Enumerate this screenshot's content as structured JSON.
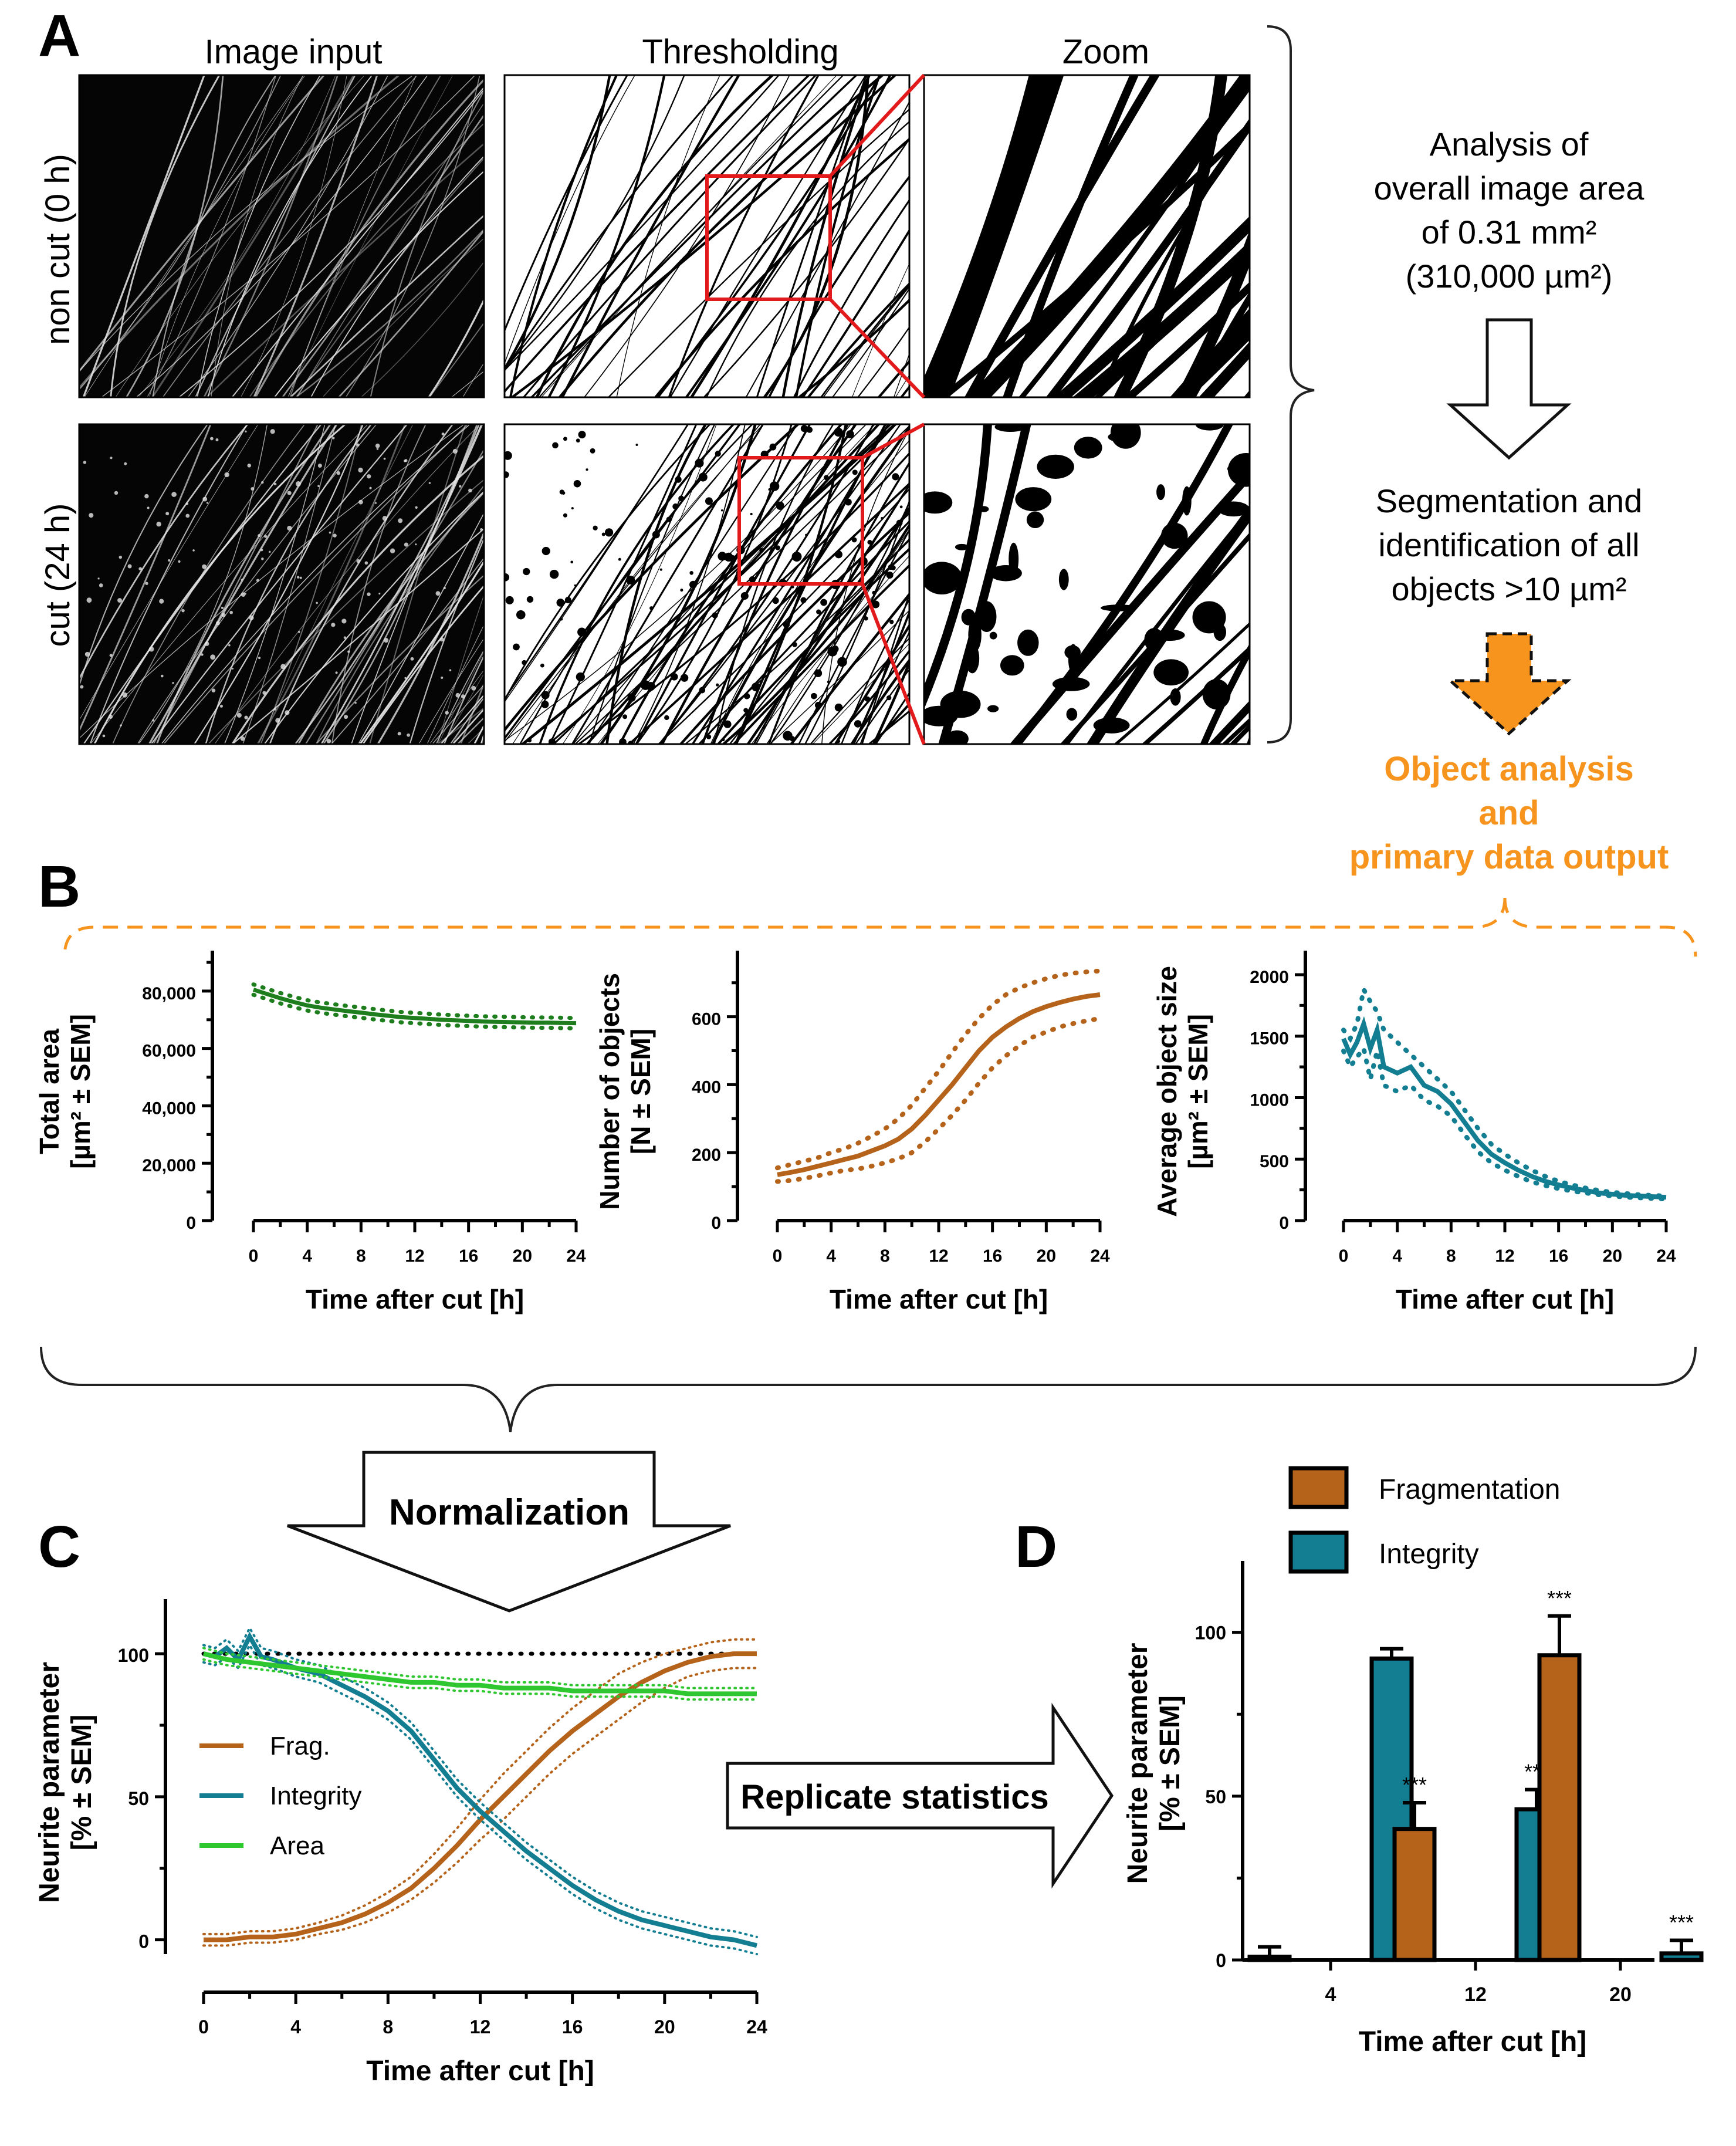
{
  "panel_a": {
    "letter": "A",
    "col_titles": [
      "Image input",
      "Thresholding",
      "Zoom"
    ],
    "row_labels": [
      "non cut (0 h)",
      "cut (24 h)"
    ],
    "flow_text_1": [
      "Analysis of",
      "overall image area",
      "of 0.31 mm²",
      "(310,000 µm²)"
    ],
    "flow_text_2": [
      "Segmentation and",
      "identification of all",
      "objects >10 µm²"
    ],
    "flow_text_3": [
      "Object analysis",
      "and",
      "primary data output"
    ]
  },
  "panel_b": {
    "letter": "B"
  },
  "panel_c": {
    "letter": "C",
    "arrow_label": "Normalization"
  },
  "panel_d": {
    "letter": "D",
    "arrow_label": "Replicate statistics"
  },
  "colors": {
    "orange": "#b5621a",
    "teal": "#137e91",
    "green": "#2fc72f",
    "darkgreen": "#1e7e1e",
    "flow_orange": "#f7941d",
    "red": "#e31a1c"
  },
  "chart_data": [
    {
      "id": "total-area",
      "type": "line",
      "xlabel": "Time after cut [h]",
      "ylabel": "Total area\n[µm² ± SEM]",
      "xlim": [
        0,
        24
      ],
      "ylim": [
        0,
        90000
      ],
      "xticks": [
        0,
        4,
        8,
        12,
        16,
        20,
        24
      ],
      "yticks": [
        0,
        20000,
        40000,
        60000,
        80000
      ],
      "ytick_labels": [
        "0",
        "20,000",
        "40,000",
        "60,000",
        "80,000"
      ],
      "series": [
        {
          "x": [
            0,
            1,
            2,
            3,
            4,
            5,
            6,
            7,
            8,
            9,
            10,
            11,
            12,
            13,
            14,
            15,
            16,
            17,
            18,
            19,
            20,
            21,
            22,
            23,
            24
          ],
          "y": [
            80500,
            79000,
            77500,
            76200,
            75000,
            74200,
            73600,
            73000,
            72500,
            71900,
            71400,
            70900,
            70600,
            70300,
            70000,
            69800,
            69600,
            69400,
            69300,
            69200,
            69100,
            69000,
            69000,
            68900,
            68800
          ],
          "sem": [
            1800,
            1800,
            1800,
            1800,
            1800,
            1800,
            1800,
            1800,
            1800,
            1800,
            1800,
            1800,
            1800,
            1800,
            1800,
            1800,
            1800,
            1800,
            1800,
            1800,
            1800,
            1800,
            1800,
            1800,
            1800
          ]
        }
      ]
    },
    {
      "id": "number-objects",
      "type": "line",
      "xlabel": "Time after cut [h]",
      "ylabel": "Number of objects\n[N ± SEM]",
      "xlim": [
        0,
        24
      ],
      "ylim": [
        0,
        760
      ],
      "xticks": [
        0,
        4,
        8,
        12,
        16,
        20,
        24
      ],
      "yticks": [
        0,
        200,
        400,
        600
      ],
      "ytick_labels": [
        "0",
        "200",
        "400",
        "600"
      ],
      "series": [
        {
          "x": [
            0,
            1,
            2,
            3,
            4,
            5,
            6,
            7,
            8,
            9,
            10,
            11,
            12,
            13,
            14,
            15,
            16,
            17,
            18,
            19,
            20,
            21,
            22,
            23,
            24
          ],
          "y": [
            135,
            142,
            150,
            160,
            170,
            180,
            190,
            205,
            220,
            240,
            270,
            310,
            355,
            400,
            450,
            500,
            540,
            570,
            595,
            615,
            630,
            642,
            652,
            660,
            665
          ],
          "upper": [
            155,
            165,
            175,
            185,
            200,
            212,
            228,
            248,
            270,
            300,
            340,
            390,
            440,
            495,
            548,
            595,
            635,
            665,
            685,
            700,
            712,
            722,
            728,
            732,
            735
          ],
          "lower": [
            115,
            118,
            124,
            132,
            140,
            148,
            152,
            160,
            170,
            182,
            200,
            232,
            270,
            310,
            355,
            405,
            450,
            485,
            515,
            540,
            555,
            570,
            580,
            588,
            595
          ]
        }
      ]
    },
    {
      "id": "average-size",
      "type": "line",
      "xlabel": "Time after cut [h]",
      "ylabel": "Average object size\n[µm² ± SEM]",
      "xlim": [
        0,
        24
      ],
      "ylim": [
        0,
        2100
      ],
      "xticks": [
        0,
        4,
        8,
        12,
        16,
        20,
        24
      ],
      "yticks": [
        0,
        500,
        1000,
        1500,
        2000
      ],
      "ytick_labels": [
        "0",
        "500",
        "1000",
        "1500",
        "2000"
      ],
      "series": [
        {
          "x": [
            0,
            0.5,
            1,
            1.5,
            2,
            2.5,
            3,
            4,
            5,
            6,
            7,
            8,
            9,
            10,
            11,
            12,
            13,
            14,
            15,
            16,
            17,
            18,
            19,
            20,
            21,
            22,
            23,
            24
          ],
          "y": [
            1480,
            1350,
            1450,
            1600,
            1400,
            1550,
            1250,
            1200,
            1250,
            1100,
            1050,
            950,
            800,
            650,
            540,
            470,
            410,
            360,
            320,
            290,
            265,
            245,
            225,
            215,
            205,
            200,
            195,
            190
          ],
          "upper": [
            1550,
            1480,
            1600,
            1880,
            1780,
            1700,
            1550,
            1450,
            1350,
            1250,
            1150,
            1050,
            900,
            750,
            620,
            540,
            470,
            410,
            360,
            320,
            290,
            265,
            245,
            230,
            220,
            210,
            205,
            200
          ],
          "lower": [
            1380,
            1250,
            1330,
            1400,
            1150,
            1380,
            1100,
            1050,
            1100,
            980,
            930,
            850,
            700,
            560,
            470,
            410,
            360,
            315,
            285,
            260,
            240,
            225,
            210,
            200,
            190,
            185,
            180,
            175
          ]
        }
      ]
    },
    {
      "id": "normalized",
      "type": "line",
      "xlabel": "Time after cut [h]",
      "ylabel": "Neurite  parameter\n[% ± SEM]",
      "xlim": [
        0,
        24
      ],
      "ylim": [
        -5,
        115
      ],
      "xticks": [
        0,
        4,
        8,
        12,
        16,
        20,
        24
      ],
      "yticks": [
        0,
        50,
        100
      ],
      "ytick_labels": [
        "0",
        "50",
        "100"
      ],
      "reference_line": 100,
      "legend": [
        "Frag.",
        "Integrity",
        "Area"
      ],
      "series": [
        {
          "name": "Frag.",
          "color": "orange",
          "x": [
            0,
            1,
            2,
            3,
            4,
            5,
            6,
            7,
            8,
            9,
            10,
            11,
            12,
            13,
            14,
            15,
            16,
            17,
            18,
            19,
            20,
            21,
            22,
            23,
            24
          ],
          "y": [
            0,
            0,
            1,
            1,
            2,
            4,
            6,
            9,
            13,
            18,
            25,
            33,
            42,
            50,
            58,
            66,
            73,
            79,
            85,
            90,
            94,
            97,
            99,
            100,
            100
          ],
          "sem": [
            2,
            2,
            2,
            2,
            2,
            2,
            2.5,
            3,
            3.5,
            4,
            5,
            6,
            7,
            8,
            8,
            8,
            8,
            8,
            8,
            7,
            6,
            5,
            5,
            5,
            5
          ]
        },
        {
          "name": "Integrity",
          "color": "teal",
          "x": [
            0,
            0.5,
            1,
            1.5,
            2,
            2.5,
            3,
            4,
            5,
            6,
            7,
            8,
            9,
            10,
            11,
            12,
            13,
            14,
            15,
            16,
            17,
            18,
            19,
            20,
            21,
            22,
            23,
            24
          ],
          "y": [
            100,
            99,
            102,
            98,
            106,
            99,
            98,
            95,
            93,
            89,
            85,
            80,
            73,
            63,
            53,
            45,
            38,
            31,
            25,
            19,
            14,
            10,
            7,
            5,
            3,
            1,
            0,
            -2
          ],
          "sem": [
            3,
            3,
            3,
            3,
            3,
            3,
            3,
            3,
            3,
            3,
            3,
            3,
            3,
            3,
            3,
            3,
            3,
            3,
            3,
            3,
            3,
            3,
            3,
            3,
            3,
            3,
            3,
            3
          ]
        },
        {
          "name": "Area",
          "color": "green",
          "x": [
            0,
            1,
            2,
            3,
            4,
            5,
            6,
            7,
            8,
            9,
            10,
            11,
            12,
            13,
            14,
            15,
            16,
            17,
            18,
            19,
            20,
            21,
            22,
            23,
            24
          ],
          "y": [
            100,
            98,
            97,
            96,
            95,
            94,
            93,
            92,
            91,
            90,
            90,
            89,
            89,
            88,
            88,
            88,
            87,
            87,
            87,
            87,
            87,
            86,
            86,
            86,
            86
          ],
          "sem": [
            2,
            2,
            2,
            2,
            2,
            2,
            2,
            2,
            2,
            2,
            2,
            2,
            2,
            2,
            2,
            2,
            2,
            2,
            2,
            2,
            2,
            2,
            2,
            2,
            2
          ]
        }
      ]
    },
    {
      "id": "replicate-bars",
      "type": "bar",
      "xlabel": "Time after cut [h]",
      "ylabel": "Neurite  parameter\n[% ± SEM]",
      "categories": [
        "4",
        "12",
        "20"
      ],
      "ylim": [
        0,
        120
      ],
      "yticks": [
        0,
        50,
        100
      ],
      "ytick_labels": [
        "0",
        "50",
        "100"
      ],
      "legend": [
        "Fragmentation",
        "Integrity"
      ],
      "series": [
        {
          "name": "Fragmentation",
          "color": "orange",
          "values": [
            1,
            40,
            93
          ],
          "err": [
            3,
            8,
            12
          ],
          "sig": [
            "",
            "***",
            "***"
          ]
        },
        {
          "name": "Integrity",
          "color": "teal",
          "values": [
            92,
            46,
            2
          ],
          "err": [
            3,
            6,
            4
          ],
          "sig": [
            "",
            "***",
            "***"
          ]
        }
      ]
    }
  ]
}
